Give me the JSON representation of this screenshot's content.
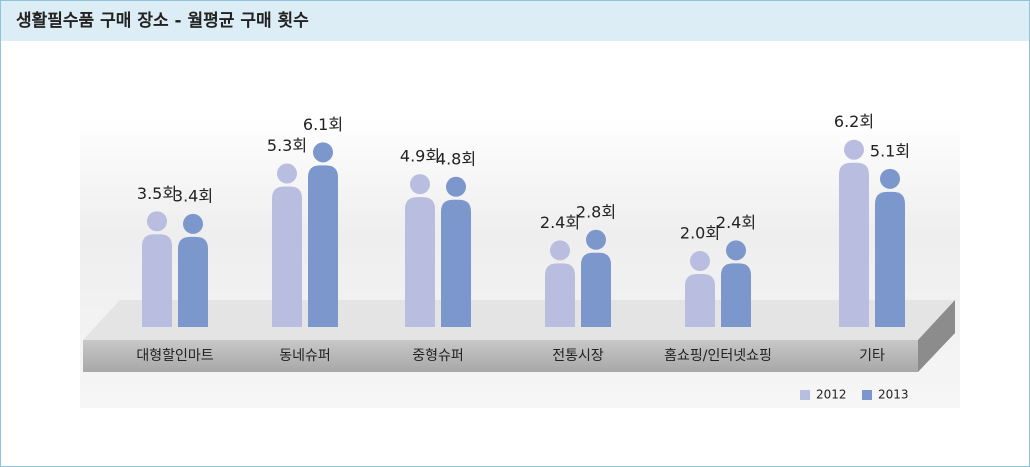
{
  "chart_data": {
    "type": "bar",
    "title": "생활필수품 구매 장소 - 월평균 구매 횟수",
    "categories": [
      "대형할인마트",
      "동네슈퍼",
      "중형슈퍼",
      "전통시장",
      "홈쇼핑/인터넷쇼핑",
      "기타"
    ],
    "series": [
      {
        "name": "2012",
        "color": "#b9bde0",
        "values": [
          3.5,
          5.3,
          4.9,
          2.4,
          2.0,
          6.2
        ],
        "value_labels": [
          "3.5회",
          "5.3회",
          "4.9회",
          "2.4회",
          "2.0회",
          "6.2회"
        ]
      },
      {
        "name": "2013",
        "color": "#7b97cc",
        "values": [
          3.4,
          6.1,
          4.8,
          2.8,
          2.4,
          5.1
        ],
        "value_labels": [
          "3.4회",
          "6.1회",
          "4.8회",
          "2.8회",
          "2.4회",
          "5.1회"
        ]
      }
    ],
    "legend": "bottom-right"
  }
}
